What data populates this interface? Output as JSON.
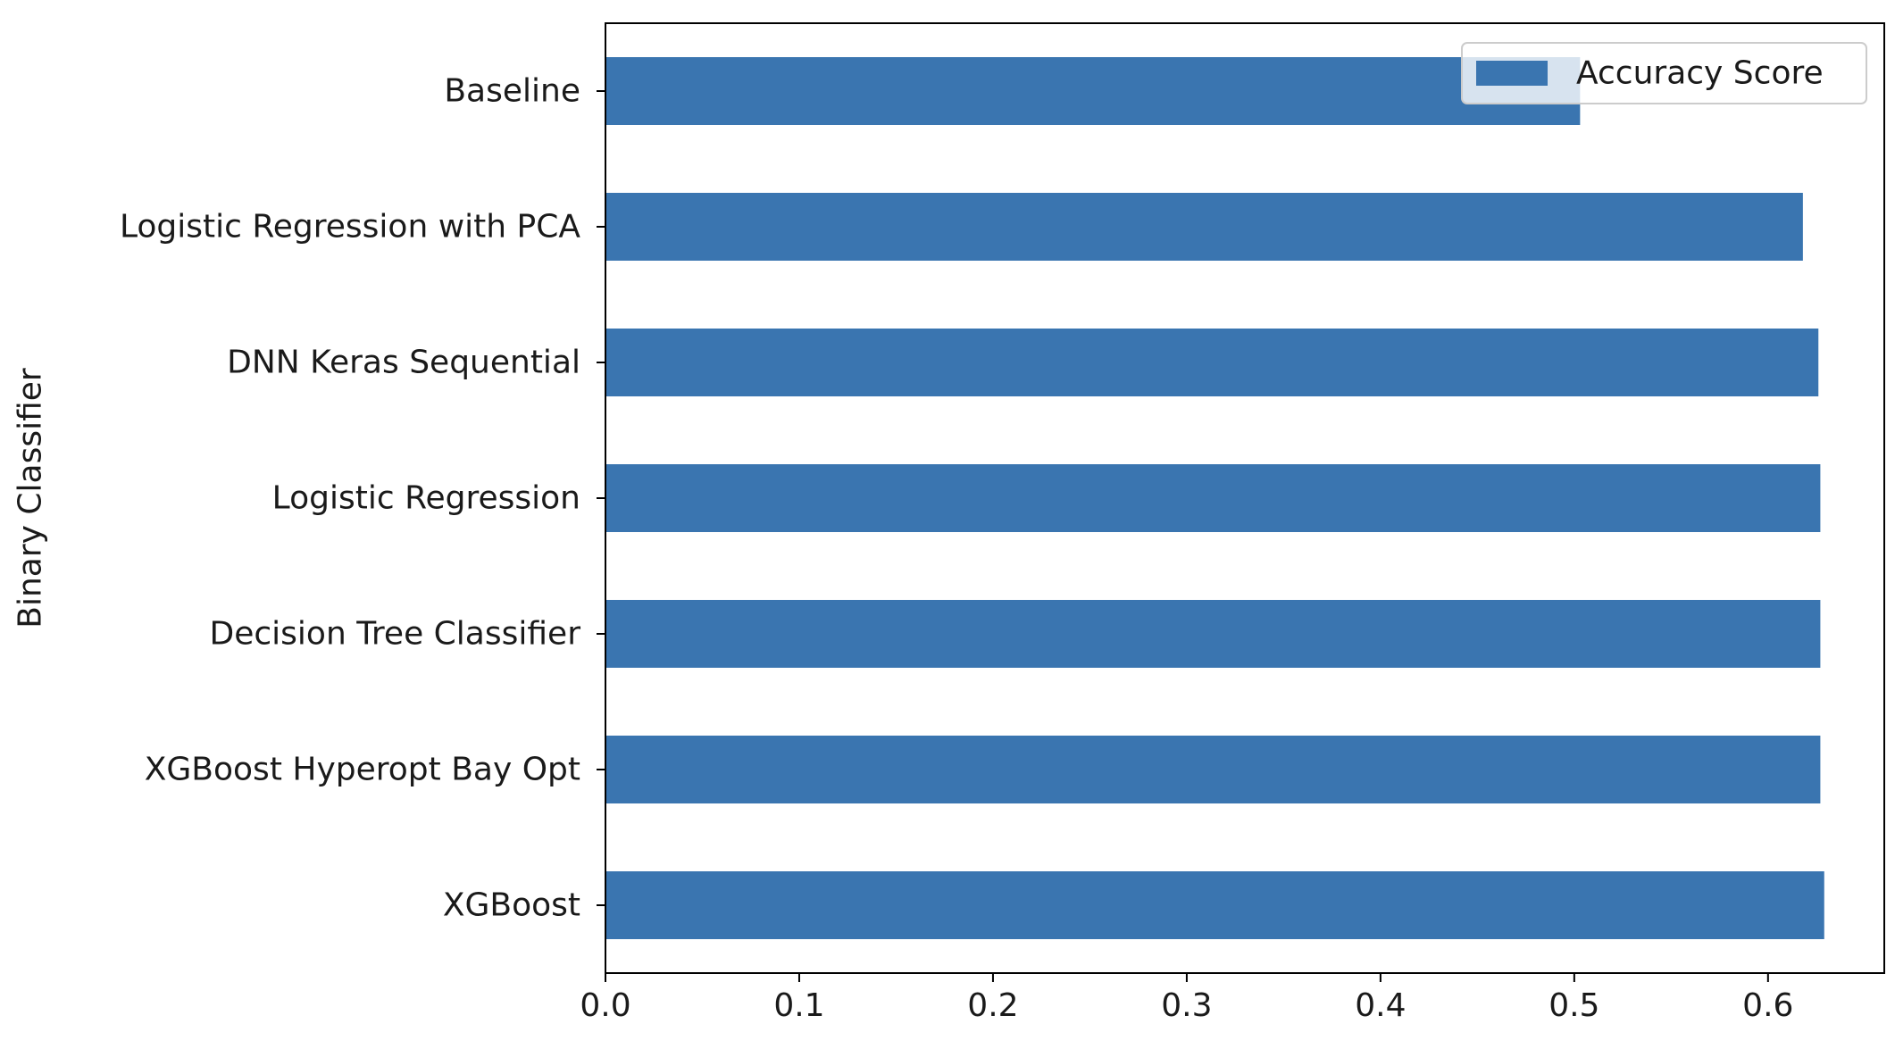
{
  "chart_data": {
    "type": "bar",
    "orientation": "horizontal",
    "categories": [
      "XGBoost",
      "XGBoost Hyperopt Bay Opt",
      "Decision Tree Classifier",
      "Logistic Regression",
      "DNN Keras Sequential",
      "Logistic Regression with PCA",
      "Baseline"
    ],
    "series": [
      {
        "name": "Accuracy Score",
        "values": [
          0.629,
          0.627,
          0.627,
          0.627,
          0.626,
          0.618,
          0.503
        ],
        "color": "#3a75b0"
      }
    ],
    "xlabel": "",
    "ylabel": "Binary Classifier",
    "xlim": [
      0.0,
      0.66
    ],
    "xticks": [
      "0.0",
      "0.1",
      "0.2",
      "0.3",
      "0.4",
      "0.5",
      "0.6"
    ],
    "grid": false,
    "legend_position": "top-right"
  }
}
